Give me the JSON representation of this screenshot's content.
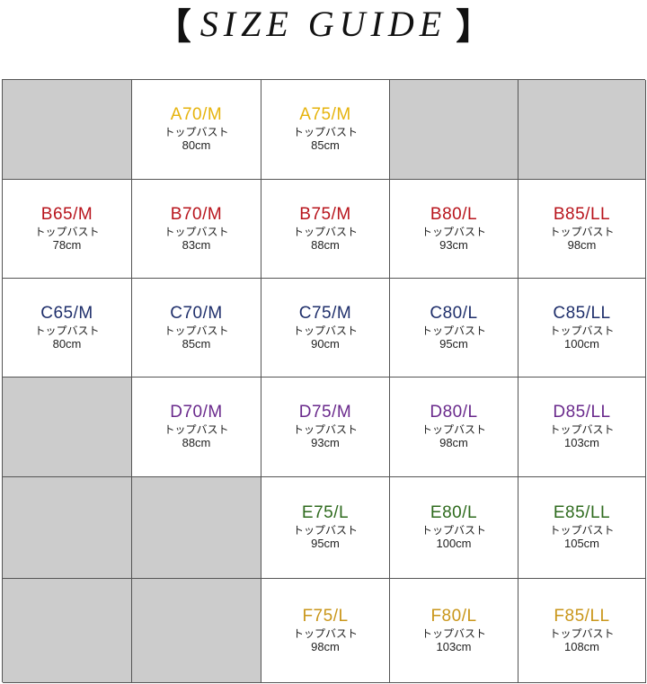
{
  "title": {
    "open_bracket": "【",
    "text": "SIZE GUIDE",
    "close_bracket": "】"
  },
  "colors": {
    "A": "#e6b30c",
    "B": "#b8141c",
    "C": "#1f2f6b",
    "D": "#6a2a8c",
    "E": "#2f6b1e",
    "F": "#c9961a",
    "empty": "#cccccc"
  },
  "rows": [
    {
      "cup": "A",
      "cells": [
        null,
        {
          "size": "A70/M",
          "label": "トップバスト",
          "measure": "80cm"
        },
        {
          "size": "A75/M",
          "label": "トップバスト",
          "measure": "85cm"
        },
        null,
        null
      ]
    },
    {
      "cup": "B",
      "cells": [
        {
          "size": "B65/M",
          "label": "トップバスト",
          "measure": "78cm"
        },
        {
          "size": "B70/M",
          "label": "トップバスト",
          "measure": "83cm"
        },
        {
          "size": "B75/M",
          "label": "トップバスト",
          "measure": "88cm"
        },
        {
          "size": "B80/L",
          "label": "トップバスト",
          "measure": "93cm"
        },
        {
          "size": "B85/LL",
          "label": "トップバスト",
          "measure": "98cm"
        }
      ]
    },
    {
      "cup": "C",
      "cells": [
        {
          "size": "C65/M",
          "label": "トップバスト",
          "measure": "80cm"
        },
        {
          "size": "C70/M",
          "label": "トップバスト",
          "measure": "85cm"
        },
        {
          "size": "C75/M",
          "label": "トップバスト",
          "measure": "90cm"
        },
        {
          "size": "C80/L",
          "label": "トップバスト",
          "measure": "95cm"
        },
        {
          "size": "C85/LL",
          "label": "トップバスト",
          "measure": "100cm"
        }
      ]
    },
    {
      "cup": "D",
      "cells": [
        null,
        {
          "size": "D70/M",
          "label": "トップバスト",
          "measure": "88cm"
        },
        {
          "size": "D75/M",
          "label": "トップバスト",
          "measure": "93cm"
        },
        {
          "size": "D80/L",
          "label": "トップバスト",
          "measure": "98cm"
        },
        {
          "size": "D85/LL",
          "label": "トップバスト",
          "measure": "103cm"
        }
      ]
    },
    {
      "cup": "E",
      "cells": [
        null,
        null,
        {
          "size": "E75/L",
          "label": "トップバスト",
          "measure": "95cm"
        },
        {
          "size": "E80/L",
          "label": "トップバスト",
          "measure": "100cm"
        },
        {
          "size": "E85/LL",
          "label": "トップバスト",
          "measure": "105cm"
        }
      ]
    },
    {
      "cup": "F",
      "cells": [
        null,
        null,
        {
          "size": "F75/L",
          "label": "トップバスト",
          "measure": "98cm"
        },
        {
          "size": "F80/L",
          "label": "トップバスト",
          "measure": "103cm"
        },
        {
          "size": "F85/LL",
          "label": "トップバスト",
          "measure": "108cm"
        }
      ]
    }
  ]
}
